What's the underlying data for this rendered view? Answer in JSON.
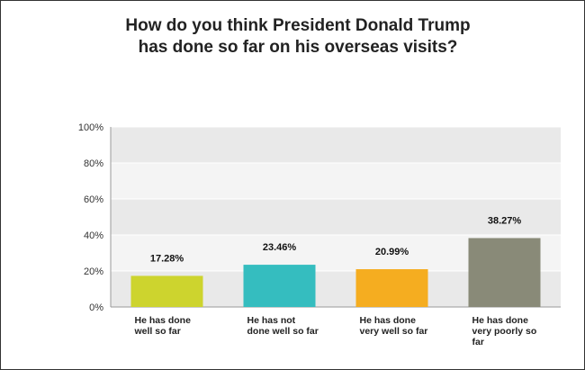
{
  "chart_data": {
    "type": "bar",
    "title": "How do you think President Donald Trump has done so far on his overseas visits?",
    "categories": [
      "He has done well so far",
      "He has not done well so far",
      "He has done very well so far",
      "He has done very poorly so far"
    ],
    "values": [
      17.28,
      23.46,
      20.99,
      38.27
    ],
    "value_labels": [
      "17.28%",
      "23.46%",
      "20.99%",
      "38.27%"
    ],
    "colors": [
      "#cdd42e",
      "#35bdbf",
      "#f5ad20",
      "#898a78"
    ],
    "ylim": [
      0,
      100
    ],
    "yticks": [
      "0%",
      "20%",
      "40%",
      "60%",
      "80%",
      "100%"
    ],
    "xlabel": "",
    "ylabel": "",
    "grid": true,
    "legend": "none"
  }
}
